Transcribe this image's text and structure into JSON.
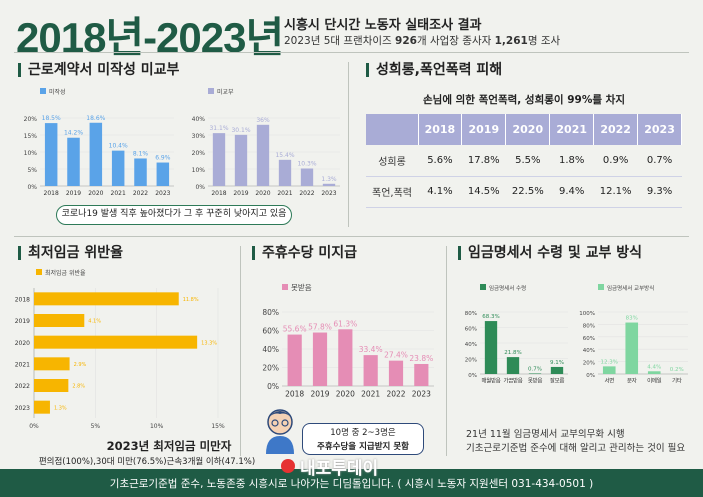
{
  "header": {
    "big_title": "2018년-2023년",
    "subtitle": "시흥시 단시간 노동자 실태조사 결과",
    "subtitle2_pre": "2023년 5대 프랜차이즈 ",
    "subtitle2_b1": "926",
    "subtitle2_mid": "개 사업장 종사자 ",
    "subtitle2_b2": "1,261",
    "subtitle2_post": "명 조사"
  },
  "sections": {
    "contract": "근로계약서 미작성 미교부",
    "harassment": "성희롱,폭언폭력 피해",
    "minwage": "최저임금 위반율",
    "holiday": "주휴수당 미지급",
    "payslip": "임금명세서 수령 및 교부 방식"
  },
  "contract_note": "코로나19 발생 직후 높아졌다가 그 후 꾸준히 낮아지고 있음",
  "harassment_intro": "손님에 의한 폭언폭력, 성희롱이 99%를 차지",
  "minwage_title": "2023년 최저임금 미만자",
  "minwage_sub": "편의점(100%),30대 미만(76.5%)근속3개월 이하(47.1%)",
  "bubble": {
    "line1": "10명 중 2~3명은",
    "line2": "주휴수당을 지급받지 못함"
  },
  "pay_note": {
    "line1": "21년 11월 임금명세서 교부의무화 시행",
    "line2": "기초근로기준법 준수에 대해 알리고 관리하는 것이 필요"
  },
  "watermark": "내포투데이",
  "footer": "기초근로기준법 준수, 노동존중 시흥시로 나아가는 디딤돌입니다. ( 시흥시 노동자 지원센터 031-434-0501 )",
  "colors": {
    "brand": "#1f5b45",
    "contract_not_written": "#5aa3e8",
    "contract_not_given": "#a9acd6",
    "minwage": "#f7b500",
    "holiday": "#e58db5",
    "payslip": "#2e8b57",
    "payslip_method": "#7fd6a0"
  },
  "chart_data": [
    {
      "id": "contract_not_written",
      "type": "bar",
      "legend": "미작성",
      "categories": [
        "2018",
        "2019",
        "2020",
        "2021",
        "2022",
        "2023"
      ],
      "values": [
        18.5,
        14.2,
        18.6,
        10.4,
        8.1,
        6.9
      ],
      "labels": [
        "18.5%",
        "14.2%",
        "18.6%",
        "10.4%",
        "8.1%",
        "6.9%"
      ],
      "yticks": [
        "0%",
        "5%",
        "10%",
        "15%",
        "20%"
      ],
      "ylim": [
        0,
        20
      ]
    },
    {
      "id": "contract_not_given",
      "type": "bar",
      "legend": "미교부",
      "categories": [
        "2018",
        "2019",
        "2020",
        "2021",
        "2022",
        "2023"
      ],
      "values": [
        31.1,
        30.1,
        36,
        15.4,
        10.3,
        1.3
      ],
      "labels": [
        "31.1%",
        "30.1%",
        "36%",
        "15.4%",
        "10.3%",
        "1.3%"
      ],
      "yticks": [
        "0%",
        "10%",
        "20%",
        "30%",
        "40%"
      ],
      "ylim": [
        0,
        40
      ]
    },
    {
      "id": "harassment",
      "type": "table",
      "columns": [
        "",
        "2018",
        "2019",
        "2020",
        "2021",
        "2022",
        "2023"
      ],
      "rows": [
        [
          "성희롱",
          "5.6%",
          "17.8%",
          "5.5%",
          "1.8%",
          "0.9%",
          "0.7%"
        ],
        [
          "폭언,폭력",
          "4.1%",
          "14.5%",
          "22.5%",
          "9.4%",
          "12.1%",
          "9.3%"
        ]
      ]
    },
    {
      "id": "minwage",
      "type": "bar",
      "orientation": "horizontal",
      "legend": "최저임금 위반율",
      "categories": [
        "2018",
        "2019",
        "2020",
        "2021",
        "2022",
        "2023"
      ],
      "values": [
        11.8,
        4.1,
        13.3,
        2.9,
        2.8,
        1.3
      ],
      "labels": [
        "11.8%",
        "4.1%",
        "13.3%",
        "2.9%",
        "2.8%",
        "1.3%"
      ],
      "xticks": [
        "0%",
        "5%",
        "10%",
        "15%"
      ],
      "xlim": [
        0,
        15
      ]
    },
    {
      "id": "holiday",
      "type": "bar",
      "legend": "못받음",
      "categories": [
        "2018",
        "2019",
        "2020",
        "2021",
        "2022",
        "2023"
      ],
      "values": [
        55.6,
        57.8,
        61.3,
        33.4,
        27.4,
        23.8
      ],
      "labels": [
        "55.6%",
        "57.8%",
        "61.3%",
        "33.4%",
        "27.4%",
        "23.8%"
      ],
      "yticks": [
        "0%",
        "20%",
        "40%",
        "60%",
        "80%"
      ],
      "ylim": [
        0,
        80
      ]
    },
    {
      "id": "payslip_receipt",
      "type": "bar",
      "legend": "임금명세서 수령",
      "categories": [
        "매월받음",
        "가끔받음",
        "못받음",
        "잘모름"
      ],
      "values": [
        68.3,
        21.8,
        0.7,
        9.1
      ],
      "labels": [
        "68.3%",
        "21.8%",
        "0.7%",
        "9.1%"
      ],
      "yticks": [
        "0%",
        "20%",
        "40%",
        "60%",
        "80%"
      ],
      "ylim": [
        0,
        80
      ]
    },
    {
      "id": "payslip_method",
      "type": "bar",
      "legend": "임금명세서 교부방식",
      "categories": [
        "서면",
        "문자",
        "이메일",
        "기타"
      ],
      "values": [
        12.3,
        83,
        4.4,
        0.2
      ],
      "labels": [
        "12.3%",
        "83%",
        "4.4%",
        "0.2%"
      ],
      "yticks": [
        "0%",
        "20%",
        "40%",
        "60%",
        "80%",
        "100%"
      ],
      "ylim": [
        0,
        100
      ]
    }
  ]
}
